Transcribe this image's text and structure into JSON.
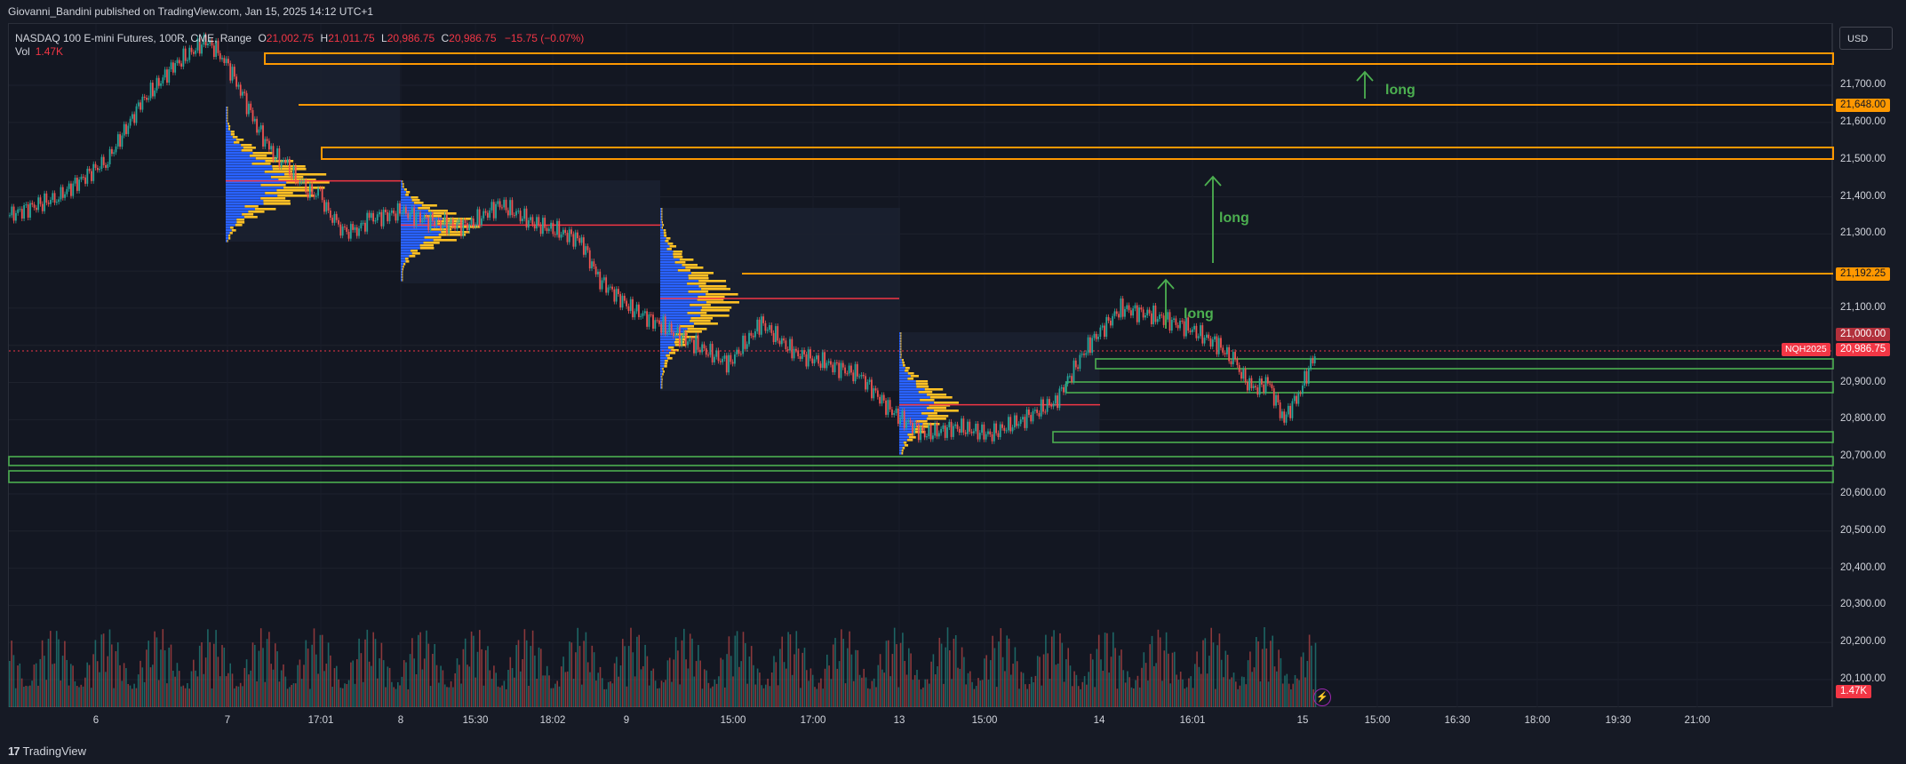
{
  "publish_line": "Giovanni_Bandini published on TradingView.com, Jan 15, 2025 14:12 UTC+1",
  "legend": {
    "symbol": "NASDAQ 100 E-mini Futures, 100R, CME, Range",
    "open_key": "O",
    "open": "21,002.75",
    "high_key": "H",
    "high": "21,011.75",
    "low_key": "L",
    "low": "20,986.75",
    "close_key": "C",
    "close": "20,986.75",
    "change": "−15.75 (−0.07%)",
    "vol_key": "Vol",
    "vol": "1.47K"
  },
  "currency_button": "USD",
  "price_axis": [
    "21,700.00",
    "21,600.00",
    "21,500.00",
    "21,400.00",
    "21,300.00",
    "21,100.00",
    "20,900.00",
    "20,800.00",
    "20,700.00",
    "20,600.00",
    "20,500.00",
    "20,400.00",
    "20,300.00",
    "20,200.00",
    "20,100.00"
  ],
  "price_labels": {
    "level_1": "21,648.00",
    "level_2": "21,192.25",
    "level_3": "21,000.00",
    "last": "20,986.75",
    "volume": "1.47K",
    "ticker": "NQH2025"
  },
  "time_axis": [
    "6",
    "7",
    "17:01",
    "8",
    "15:30",
    "18:02",
    "9",
    "15:00",
    "17:00",
    "13",
    "15:00",
    "14",
    "16:01",
    "15",
    "15:00",
    "16:30",
    "18:00",
    "19:30",
    "21:00"
  ],
  "annotations": [
    "long",
    "long",
    "long"
  ],
  "brand": "TradingView",
  "colors": {
    "background": "#131722",
    "resistance": "#ff9800",
    "support": "#4caf50",
    "up_candle": "#26a69a",
    "down_candle": "#ef5350",
    "profile_blue": "#2962ff",
    "profile_yellow": "#ffc125",
    "poc": "#f23645"
  },
  "chart_data": {
    "type": "line",
    "title": "",
    "ylim": [
      20050,
      21800
    ],
    "y_ticks": [
      21700,
      21600,
      21500,
      21400,
      21300,
      21200,
      21100,
      21000,
      20900,
      20800,
      20700,
      20600,
      20500,
      20400,
      20300,
      20200,
      20100
    ],
    "resistance_zones": [
      [
        21760,
        21785
      ],
      [
        21648,
        21648
      ],
      [
        21500,
        21525
      ],
      [
        21192.25,
        21192.25
      ]
    ],
    "support_zones": [
      [
        20940,
        20965
      ],
      [
        20900,
        20905
      ],
      [
        20870,
        20880
      ],
      [
        20765,
        20770
      ],
      [
        20735,
        20740
      ],
      [
        20690,
        20700
      ],
      [
        20660,
        20670
      ],
      [
        20630,
        20640
      ]
    ],
    "price_path": [
      [
        0,
        21350
      ],
      [
        3,
        21400
      ],
      [
        6,
        21500
      ],
      [
        8,
        21650
      ],
      [
        10,
        21750
      ],
      [
        12,
        21820
      ],
      [
        13,
        21780
      ],
      [
        14,
        21700
      ],
      [
        15,
        21600
      ],
      [
        16,
        21520
      ],
      [
        17,
        21480
      ],
      [
        18,
        21420
      ],
      [
        19,
        21400
      ],
      [
        20,
        21320
      ],
      [
        21,
        21300
      ],
      [
        22,
        21340
      ],
      [
        24,
        21360
      ],
      [
        26,
        21330
      ],
      [
        28,
        21320
      ],
      [
        30,
        21380
      ],
      [
        32,
        21330
      ],
      [
        34,
        21300
      ],
      [
        35,
        21280
      ],
      [
        36,
        21180
      ],
      [
        38,
        21100
      ],
      [
        40,
        21050
      ],
      [
        42,
        21000
      ],
      [
        44,
        20950
      ],
      [
        46,
        21060
      ],
      [
        48,
        20980
      ],
      [
        50,
        20950
      ],
      [
        52,
        20920
      ],
      [
        54,
        20820
      ],
      [
        56,
        20760
      ],
      [
        58,
        20780
      ],
      [
        60,
        20760
      ],
      [
        62,
        20800
      ],
      [
        64,
        20850
      ],
      [
        66,
        21000
      ],
      [
        68,
        21100
      ],
      [
        70,
        21080
      ],
      [
        72,
        21050
      ],
      [
        74,
        21000
      ],
      [
        75,
        20950
      ],
      [
        76,
        20880
      ],
      [
        77,
        20900
      ],
      [
        78,
        20800
      ],
      [
        79,
        20880
      ],
      [
        80,
        20990
      ]
    ],
    "volume_profiles": [
      {
        "low": 21280,
        "high": 21760,
        "poc": 21450
      },
      {
        "low": 21190,
        "high": 21440,
        "poc": 21350
      },
      {
        "low": 20880,
        "high": 21370,
        "poc": 21010
      },
      {
        "low": 20700,
        "high": 21000,
        "poc": 20770
      }
    ]
  }
}
